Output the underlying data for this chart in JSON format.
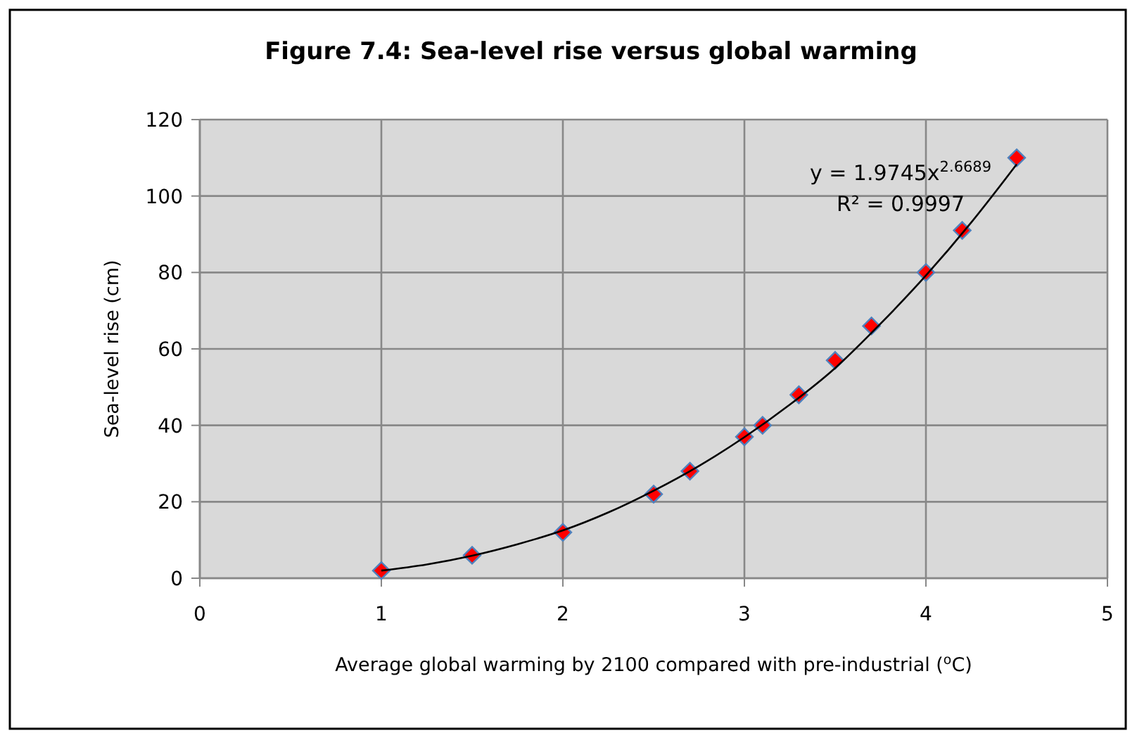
{
  "chart_data": {
    "type": "scatter",
    "title": "Figure 7.4: Sea-level rise versus global warming",
    "xlabel": "Average global warming  by 2100 compared with pre-industrial ($^{o}$C)",
    "ylabel": "Sea-level rise (cm)",
    "annotations": [
      "y = 1.9745x$^{2.6689}$",
      "R² = 0.9997"
    ],
    "xlim": [
      0,
      5
    ],
    "xticks": [
      0,
      1,
      2,
      3,
      4,
      5
    ],
    "ylim": [
      0,
      120
    ],
    "yticks": [
      0,
      20,
      40,
      60,
      80,
      100,
      120
    ],
    "grid": true,
    "series": [
      {
        "color": "#ff0000",
        "marker": "diamond",
        "x": [
          1,
          1.5,
          2,
          2.5,
          2.7,
          3,
          3.1,
          3.3,
          3.5,
          3.7,
          4,
          4.2,
          4.5
        ],
        "values": [
          2,
          6,
          12,
          22,
          28,
          37,
          40,
          48,
          57,
          66,
          80,
          91,
          110
        ]
      },
      {
        "type": "line",
        "color": "#000000",
        "x": [
          1,
          1.25,
          1.5,
          1.75,
          2,
          2.25,
          2.5,
          2.75,
          3,
          3.25,
          3.5,
          3.75,
          4,
          4.25,
          4.5
        ],
        "values": [
          2,
          3.6,
          5.9,
          8.9,
          12.5,
          17.2,
          22.9,
          29.4,
          36.9,
          45.4,
          55,
          66.6,
          79.2,
          93.1,
          108.3
        ]
      }
    ]
  }
}
